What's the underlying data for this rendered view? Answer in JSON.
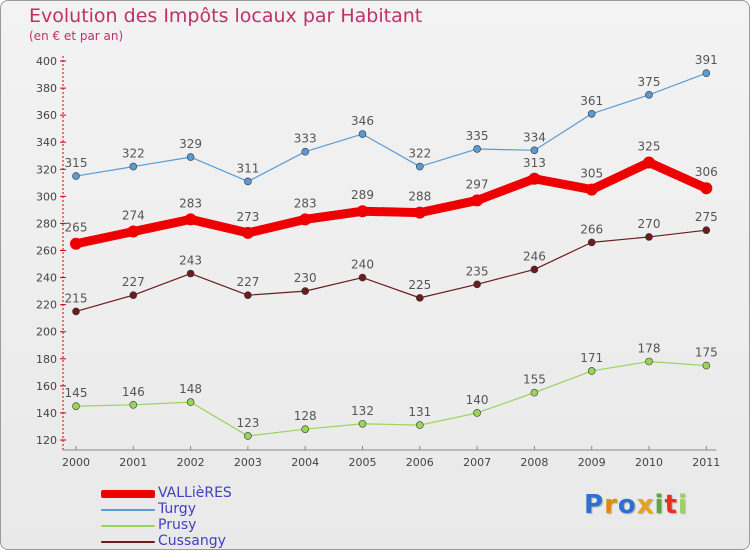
{
  "chart_data": {
    "type": "line",
    "title": "Evolution des Impôts locaux par Habitant",
    "subtitle": "(en € et par an)",
    "xlabel": "",
    "ylabel": "",
    "x": [
      "2000",
      "2001",
      "2002",
      "2003",
      "2004",
      "2005",
      "2006",
      "2007",
      "2008",
      "2009",
      "2010",
      "2011"
    ],
    "ylim": [
      120,
      400
    ],
    "yticks": [
      "120",
      "140",
      "160",
      "180",
      "200",
      "220",
      "240",
      "260",
      "280",
      "300",
      "320",
      "340",
      "360",
      "380",
      "400"
    ],
    "grid": false,
    "legend_position": "bottom-left",
    "series": [
      {
        "name": "VALLièRES",
        "color": "#ee0000",
        "values": [
          265,
          274,
          283,
          273,
          283,
          289,
          288,
          297,
          313,
          305,
          325,
          306
        ]
      },
      {
        "name": "Turgy",
        "color": "#5b9bd5",
        "values": [
          315,
          322,
          329,
          311,
          333,
          346,
          322,
          335,
          334,
          361,
          375,
          391
        ]
      },
      {
        "name": "Prusy",
        "color": "#9ad45a",
        "values": [
          145,
          146,
          148,
          123,
          128,
          132,
          131,
          140,
          155,
          171,
          178,
          175
        ]
      },
      {
        "name": "Cussangy",
        "color": "#6b1c1c",
        "values": [
          215,
          227,
          243,
          227,
          230,
          240,
          225,
          235,
          246,
          266,
          270,
          275
        ]
      }
    ]
  },
  "logo": {
    "letters": [
      "P",
      "r",
      "o",
      "x",
      "i",
      "t",
      "i"
    ],
    "colors": [
      "#2f6fd0",
      "#e08a10",
      "#2f6fd0",
      "#e8a020",
      "#5aa83c",
      "#e83020",
      "#9ad45a"
    ]
  }
}
